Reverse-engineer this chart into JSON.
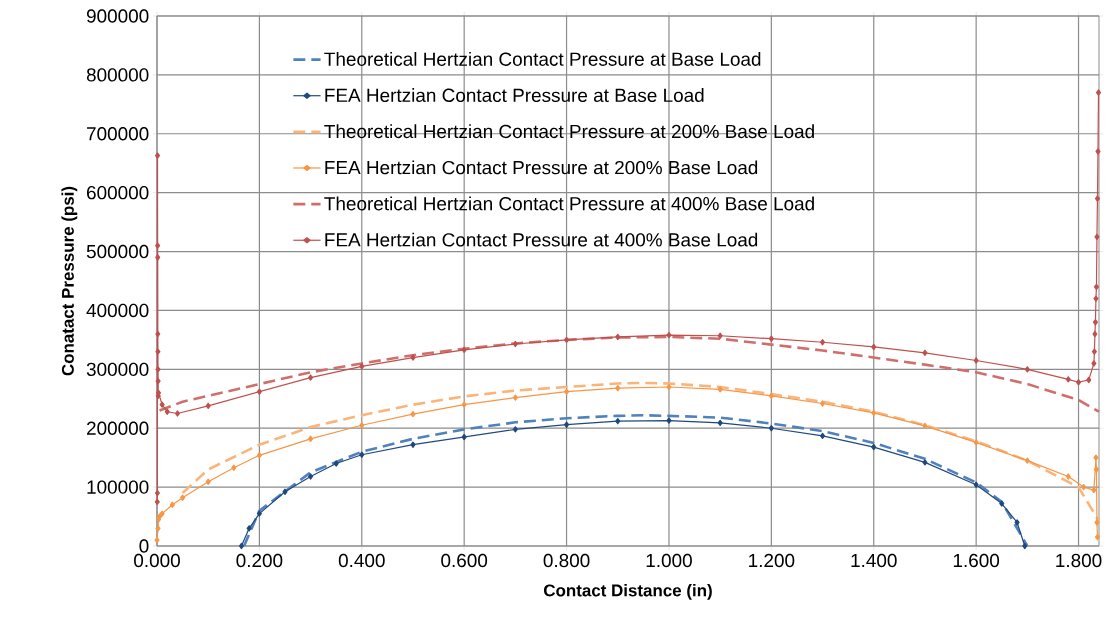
{
  "chart_data": {
    "type": "line",
    "xlabel": "Contact Distance (in)",
    "ylabel": "Conatact Pressure (psi)",
    "xlim": [
      0,
      1.84
    ],
    "ylim": [
      0,
      900000
    ],
    "xticks": [
      {
        "value": 0,
        "label": "0.000"
      },
      {
        "value": 0.2,
        "label": "0.200"
      },
      {
        "value": 0.4,
        "label": "0.400"
      },
      {
        "value": 0.6,
        "label": "0.600"
      },
      {
        "value": 0.8,
        "label": "0.800"
      },
      {
        "value": 1.0,
        "label": "1.000"
      },
      {
        "value": 1.2,
        "label": "1.200"
      },
      {
        "value": 1.4,
        "label": "1.400"
      },
      {
        "value": 1.6,
        "label": "1.600"
      },
      {
        "value": 1.8,
        "label": "1.800"
      }
    ],
    "yticks": [
      0,
      100000,
      200000,
      300000,
      400000,
      500000,
      600000,
      700000,
      800000,
      900000
    ],
    "grid": true,
    "legend": "top",
    "series": [
      {
        "name": "Theoretical Hertzian Contact Pressure at Base Load",
        "color": "#4f81bd",
        "line_style": "dashed",
        "marker": "none",
        "x": [
          0.17,
          0.2,
          0.3,
          0.4,
          0.5,
          0.6,
          0.7,
          0.8,
          0.9,
          0.95,
          1.0,
          1.1,
          1.2,
          1.3,
          1.4,
          1.5,
          1.6,
          1.65,
          1.7
        ],
        "values": [
          0,
          60000,
          125000,
          160000,
          182000,
          198000,
          210000,
          217000,
          221000,
          222000,
          221000,
          218000,
          208000,
          195000,
          175000,
          148000,
          108000,
          75000,
          0
        ]
      },
      {
        "name": "FEA Hertzian Contact Pressure at Base Load",
        "color": "#1f497d",
        "line_style": "solid",
        "marker": "diamond",
        "x": [
          0.165,
          0.18,
          0.2,
          0.25,
          0.3,
          0.35,
          0.4,
          0.5,
          0.6,
          0.7,
          0.8,
          0.9,
          1.0,
          1.1,
          1.2,
          1.3,
          1.4,
          1.5,
          1.6,
          1.65,
          1.68,
          1.695
        ],
        "values": [
          0,
          30000,
          55000,
          92000,
          118000,
          140000,
          155000,
          172000,
          185000,
          198000,
          206000,
          212000,
          213000,
          209000,
          200000,
          187000,
          168000,
          142000,
          104000,
          72000,
          40000,
          0
        ]
      },
      {
        "name": "Theoretical Hertzian Contact Pressure at 200% Base Load",
        "color": "#fab47a",
        "line_style": "dashed",
        "marker": "none",
        "x": [
          0.05,
          0.1,
          0.2,
          0.3,
          0.4,
          0.5,
          0.6,
          0.7,
          0.8,
          0.9,
          0.95,
          1.0,
          1.1,
          1.2,
          1.3,
          1.4,
          1.5,
          1.6,
          1.7,
          1.8,
          1.84
        ],
        "values": [
          90000,
          130000,
          172000,
          202000,
          222000,
          240000,
          254000,
          264000,
          270000,
          276000,
          277000,
          276000,
          270000,
          258000,
          245000,
          228000,
          205000,
          178000,
          145000,
          100000,
          42000
        ]
      },
      {
        "name": "FEA Hertzian Contact Pressure at 200% Base Load",
        "color": "#f79646",
        "line_style": "solid",
        "marker": "diamond",
        "x": [
          0.0,
          0.002,
          0.003,
          0.005,
          0.01,
          0.03,
          0.05,
          0.1,
          0.15,
          0.2,
          0.3,
          0.4,
          0.5,
          0.6,
          0.7,
          0.8,
          0.9,
          1.0,
          1.1,
          1.2,
          1.3,
          1.4,
          1.5,
          1.6,
          1.7,
          1.78,
          1.81,
          1.83,
          1.834,
          1.835,
          1.836,
          1.837
        ],
        "values": [
          10000,
          30000,
          45000,
          50000,
          55000,
          70000,
          82000,
          109000,
          133000,
          154000,
          182000,
          205000,
          224000,
          240000,
          252000,
          262000,
          268000,
          270000,
          266000,
          255000,
          242000,
          226000,
          204000,
          176000,
          145000,
          118000,
          100000,
          95000,
          150000,
          130000,
          40000,
          15000
        ]
      },
      {
        "name": "Theoretical Hertzian Contact Pressure at 400% Base Load",
        "color": "#d06e6b",
        "line_style": "dashed",
        "marker": "none",
        "x": [
          0.005,
          0.05,
          0.1,
          0.2,
          0.3,
          0.4,
          0.5,
          0.6,
          0.7,
          0.8,
          0.9,
          1.0,
          1.1,
          1.2,
          1.3,
          1.4,
          1.5,
          1.6,
          1.7,
          1.8,
          1.84
        ],
        "values": [
          230000,
          245000,
          255000,
          275000,
          295000,
          310000,
          324000,
          335000,
          344000,
          350000,
          354000,
          355000,
          352000,
          342000,
          332000,
          320000,
          308000,
          295000,
          275000,
          248000,
          228000
        ]
      },
      {
        "name": "FEA Hertzian Contact Pressure at 400% Base Load",
        "color": "#c0504d",
        "line_style": "solid",
        "marker": "diamond",
        "x": [
          0.0005,
          0.0008,
          0.001,
          0.0012,
          0.0014,
          0.0016,
          0.0018,
          0.002,
          0.0022,
          0.0024,
          0.003,
          0.01,
          0.02,
          0.04,
          0.1,
          0.2,
          0.3,
          0.4,
          0.5,
          0.6,
          0.7,
          0.8,
          0.9,
          1.0,
          1.1,
          1.2,
          1.3,
          1.4,
          1.5,
          1.6,
          1.7,
          1.78,
          1.8,
          1.82,
          1.83,
          1.831,
          1.832,
          1.833,
          1.834,
          1.835,
          1.836,
          1.837,
          1.838,
          1.839
        ],
        "values": [
          75000,
          90000,
          663000,
          510000,
          490000,
          360000,
          330000,
          300000,
          280000,
          255000,
          260000,
          240000,
          228000,
          225000,
          238000,
          262000,
          286000,
          305000,
          320000,
          333000,
          343000,
          350000,
          355000,
          358000,
          357000,
          352000,
          346000,
          338000,
          328000,
          315000,
          300000,
          283000,
          278000,
          282000,
          310000,
          330000,
          360000,
          380000,
          420000,
          440000,
          525000,
          590000,
          670000,
          770000
        ]
      }
    ]
  }
}
